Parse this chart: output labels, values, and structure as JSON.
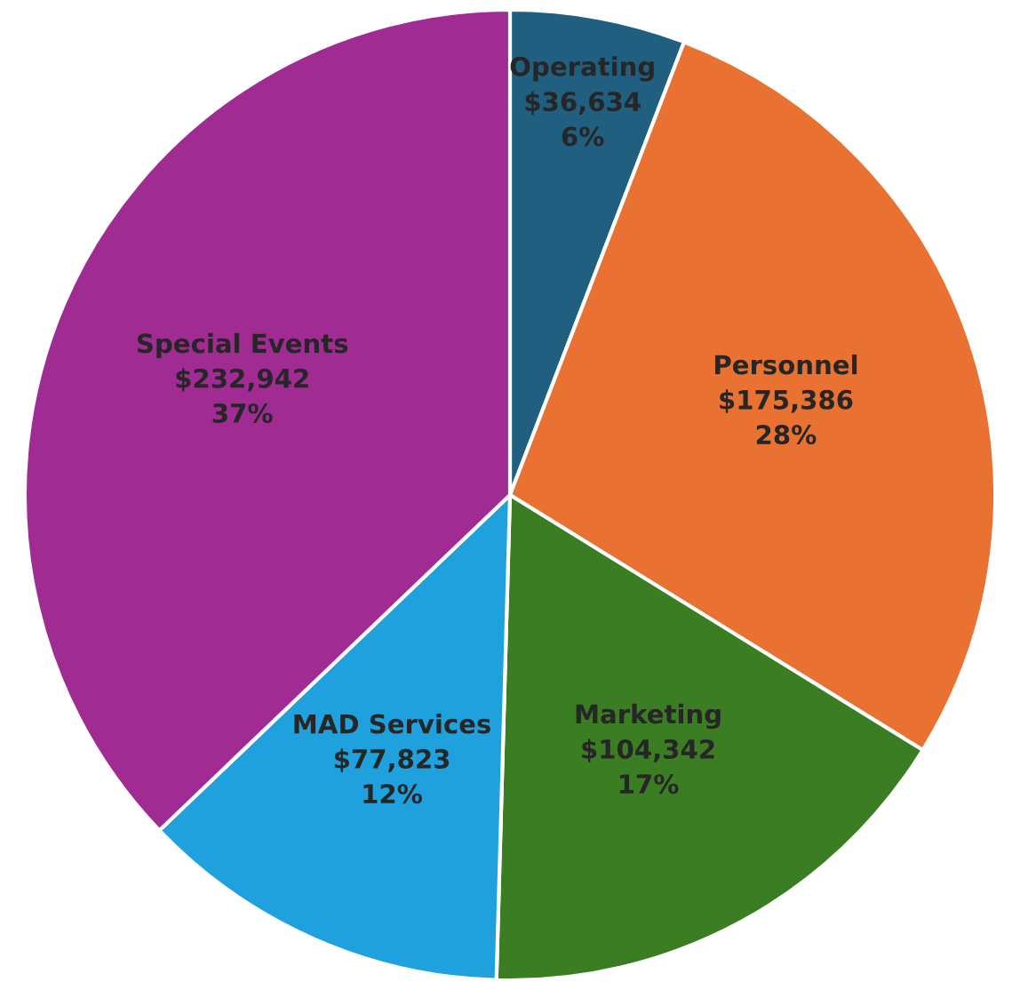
{
  "chart_data": {
    "type": "pie",
    "categories": [
      "Operating",
      "Personnel",
      "Marketing",
      "MAD Services",
      "Special Events"
    ],
    "values": [
      36634,
      175386,
      104342,
      77823,
      232942
    ],
    "value_labels": [
      "$36,634\n6%",
      "$175,386\n28%",
      "$104,342\n17%",
      "$77,823\n12%",
      "$232,942\n37%"
    ],
    "colors": [
      "#215f80",
      "#e97132",
      "#3b7d23",
      "#1ea1dc",
      "#a02b93"
    ],
    "legend": false
  }
}
